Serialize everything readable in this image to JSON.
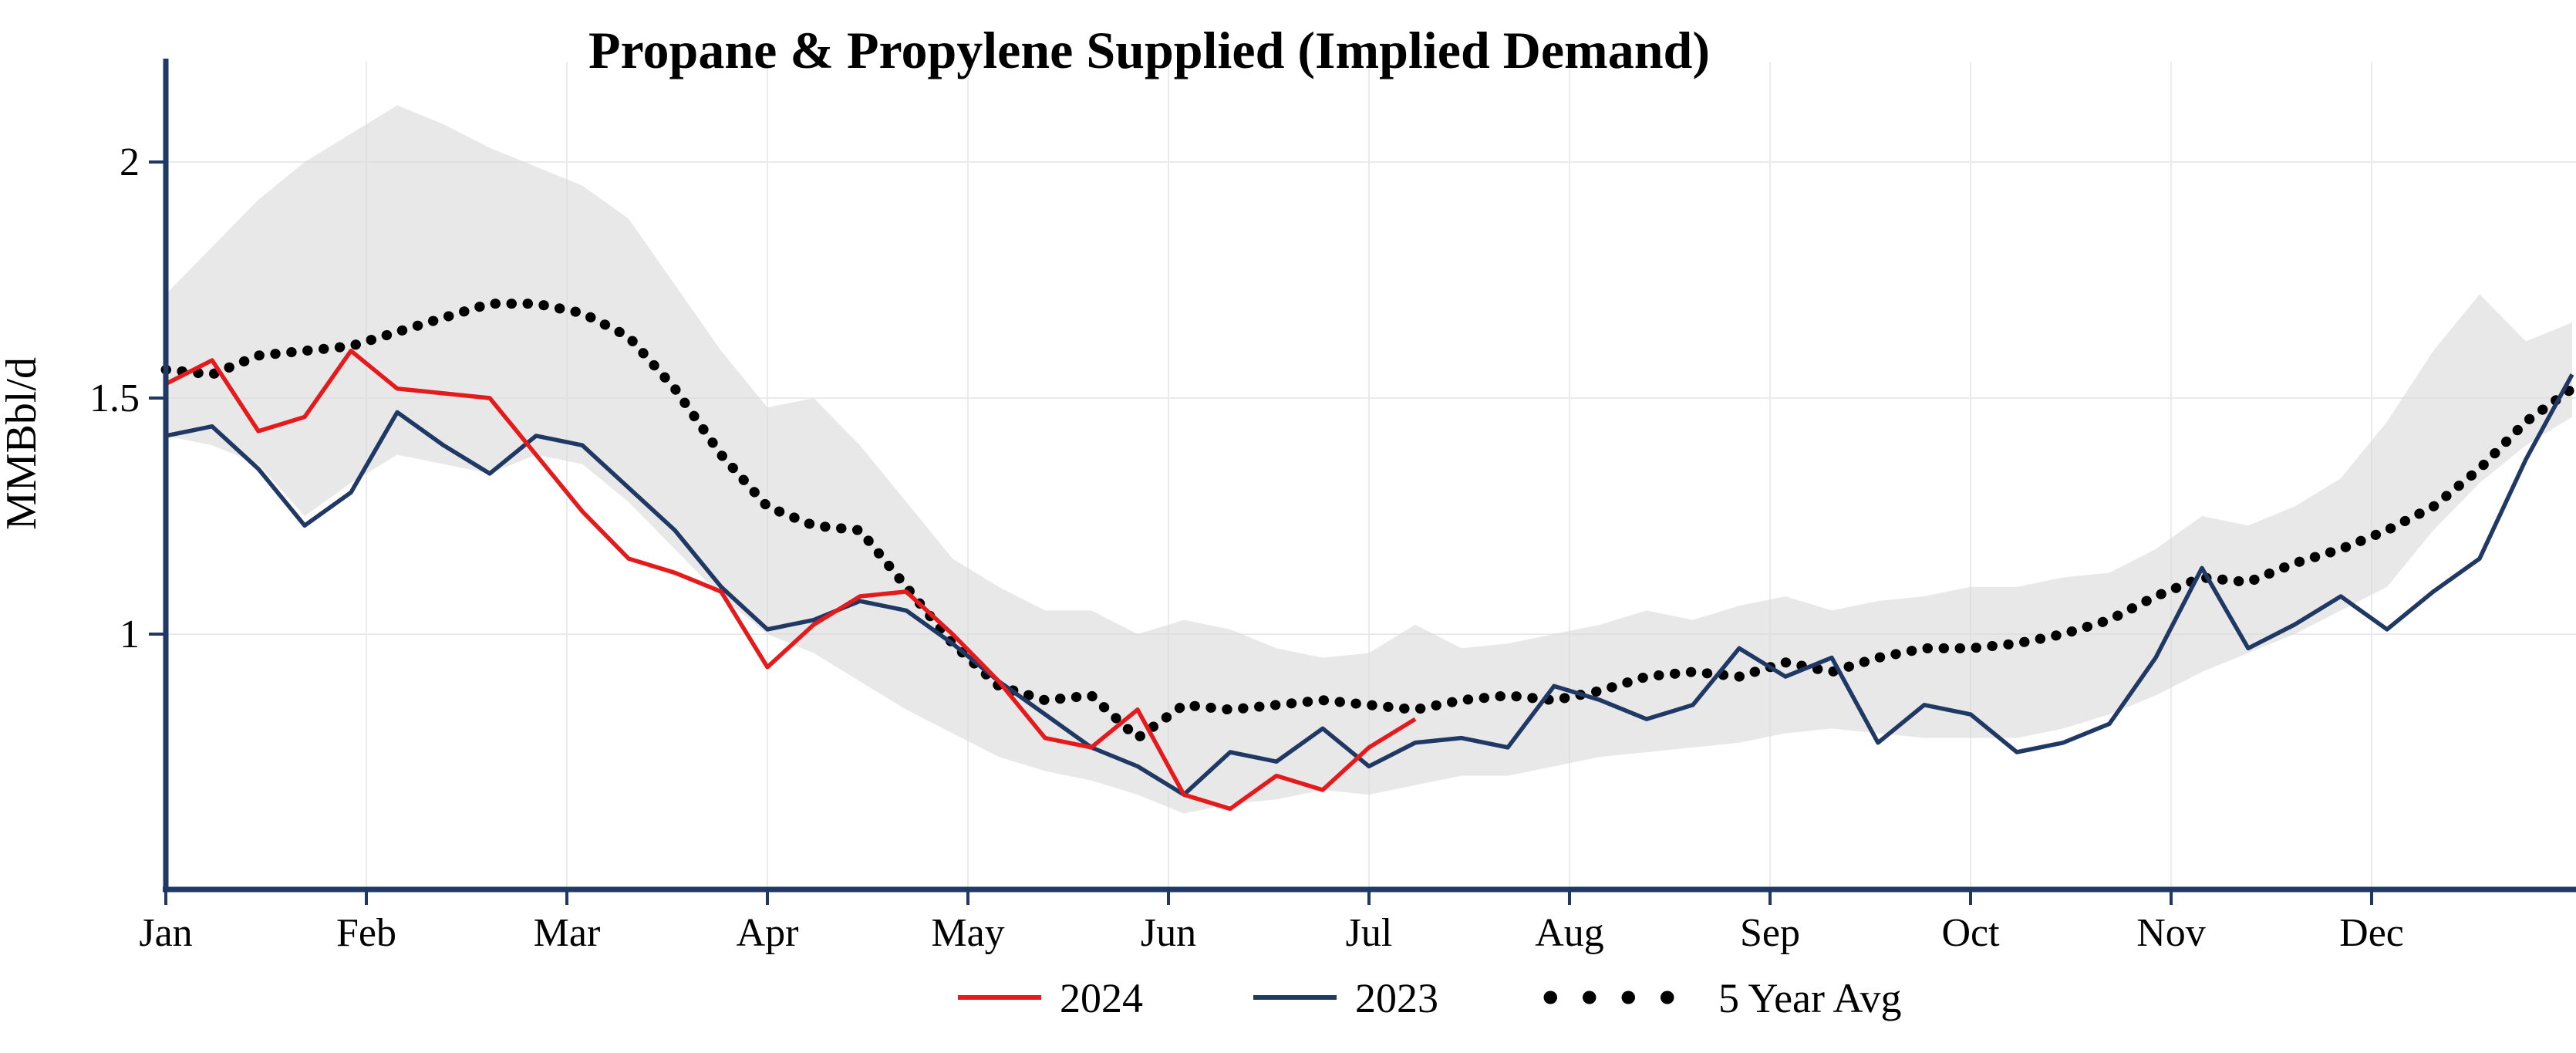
{
  "colors": {
    "red": "#e41a1c",
    "navy": "#1f3864",
    "avg_dotted": "#000000",
    "band": "#d9d9d9",
    "axis": "#1f3864",
    "grid": "#ebebeb"
  },
  "chart_data": {
    "type": "line",
    "title": "Propane & Propylene Supplied (Implied Demand)",
    "xlabel": "",
    "ylabel": "MMBbl/d",
    "x_unit": "weeks (Jan - Dec)",
    "x_tick_labels": [
      "Jan",
      "Feb",
      "Mar",
      "Apr",
      "May",
      "Jun",
      "Jul",
      "Aug",
      "Sep",
      "Oct",
      "Nov",
      "Dec"
    ],
    "y_ticks": [
      1,
      1.5,
      2
    ],
    "y_tick_labels": [
      "1",
      "1.5",
      "2"
    ],
    "ylim": [
      0.49,
      2.21
    ],
    "grid": true,
    "legend_position": "bottom",
    "series": [
      {
        "name": "2024",
        "color": "#e41a1c",
        "line_style": "solid",
        "weekly_values": [
          1.53,
          1.58,
          1.43,
          1.46,
          1.6,
          1.52,
          1.51,
          1.5,
          1.38,
          1.26,
          1.16,
          1.13,
          1.09,
          0.93,
          1.02,
          1.08,
          1.09,
          1.0,
          0.9,
          0.78,
          0.76,
          0.84,
          0.66,
          0.63,
          0.7,
          0.67,
          0.76,
          0.82
        ]
      },
      {
        "name": "2023",
        "color": "#1f3864",
        "line_style": "solid",
        "weekly_values": [
          1.42,
          1.44,
          1.35,
          1.23,
          1.3,
          1.47,
          1.4,
          1.34,
          1.42,
          1.4,
          1.31,
          1.22,
          1.1,
          1.01,
          1.03,
          1.07,
          1.05,
          0.98,
          0.9,
          0.83,
          0.76,
          0.72,
          0.66,
          0.75,
          0.73,
          0.8,
          0.72,
          0.77,
          0.78,
          0.76,
          0.89,
          0.86,
          0.82,
          0.85,
          0.97,
          0.91,
          0.95,
          0.77,
          0.85,
          0.83,
          0.75,
          0.77,
          0.81,
          0.95,
          1.14,
          0.97,
          1.02,
          1.08,
          1.01,
          1.09,
          1.16,
          1.37,
          1.55
        ]
      },
      {
        "name": "5 Year Avg",
        "color": "#000000",
        "line_style": "dotted",
        "weekly_values": [
          1.56,
          1.55,
          1.59,
          1.6,
          1.61,
          1.64,
          1.67,
          1.7,
          1.7,
          1.68,
          1.63,
          1.52,
          1.38,
          1.27,
          1.23,
          1.22,
          1.1,
          0.98,
          0.89,
          0.86,
          0.87,
          0.78,
          0.85,
          0.84,
          0.85,
          0.86,
          0.85,
          0.84,
          0.86,
          0.87,
          0.86,
          0.88,
          0.91,
          0.92,
          0.91,
          0.94,
          0.92,
          0.95,
          0.97,
          0.97,
          0.98,
          1.0,
          1.03,
          1.08,
          1.12,
          1.11,
          1.15,
          1.18,
          1.22,
          1.27,
          1.35,
          1.45,
          1.52
        ]
      }
    ],
    "range_band": {
      "description": "5 year min-max range (shaded)",
      "fill": "#d9d9d9",
      "upper": [
        1.72,
        1.82,
        1.92,
        2.0,
        2.06,
        2.12,
        2.08,
        2.03,
        1.99,
        1.95,
        1.88,
        1.74,
        1.6,
        1.48,
        1.5,
        1.4,
        1.28,
        1.16,
        1.1,
        1.05,
        1.05,
        1.0,
        1.03,
        1.01,
        0.97,
        0.95,
        0.96,
        1.02,
        0.97,
        0.98,
        1.0,
        1.02,
        1.05,
        1.03,
        1.06,
        1.08,
        1.05,
        1.07,
        1.08,
        1.1,
        1.1,
        1.12,
        1.13,
        1.18,
        1.25,
        1.23,
        1.27,
        1.33,
        1.45,
        1.6,
        1.72,
        1.62,
        1.66
      ],
      "lower": [
        1.42,
        1.4,
        1.36,
        1.25,
        1.32,
        1.38,
        1.36,
        1.34,
        1.38,
        1.36,
        1.28,
        1.18,
        1.08,
        1.0,
        0.96,
        0.9,
        0.84,
        0.79,
        0.74,
        0.71,
        0.69,
        0.66,
        0.62,
        0.64,
        0.65,
        0.67,
        0.66,
        0.68,
        0.7,
        0.7,
        0.72,
        0.74,
        0.75,
        0.76,
        0.77,
        0.79,
        0.8,
        0.79,
        0.78,
        0.78,
        0.78,
        0.8,
        0.83,
        0.87,
        0.92,
        0.96,
        1.0,
        1.05,
        1.1,
        1.22,
        1.32,
        1.4,
        1.46
      ]
    }
  }
}
